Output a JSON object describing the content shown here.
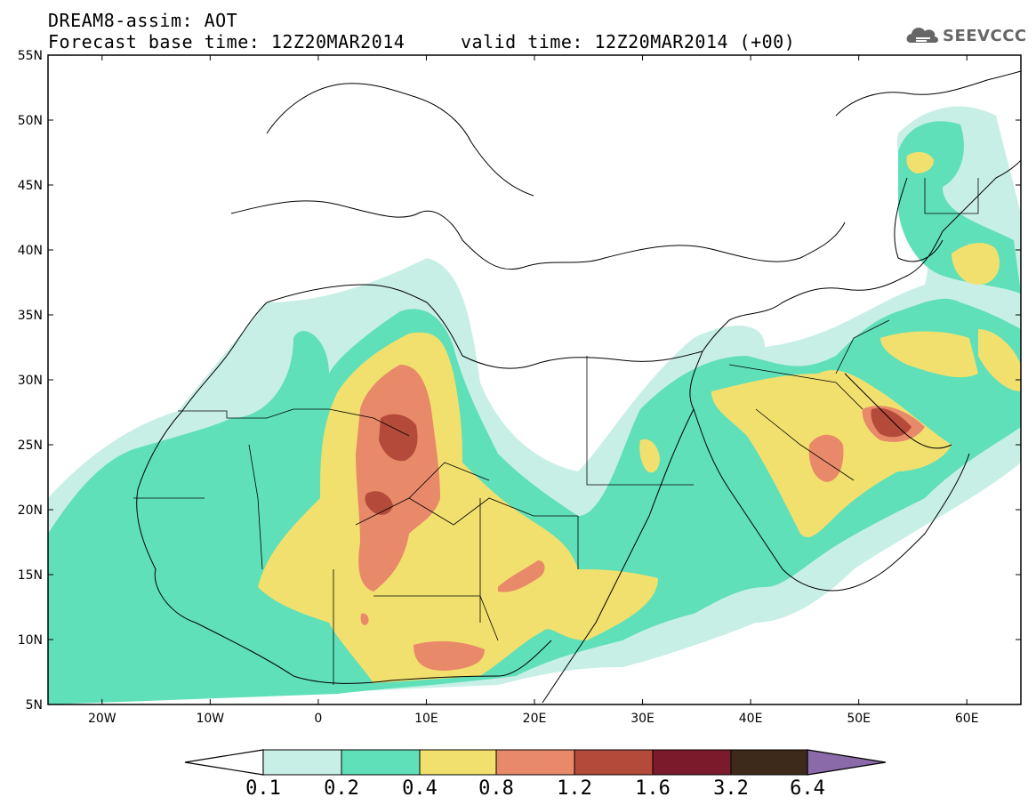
{
  "header": {
    "title": "DREAM8-assim: AOT",
    "subtitle": "Forecast base time: 12Z20MAR2014     valid time: 12Z20MAR2014 (+00)"
  },
  "logo": {
    "text": "SEEVCCC",
    "icon": "cloud-icon"
  },
  "map": {
    "lat_ticks": [
      "55N",
      "50N",
      "45N",
      "40N",
      "35N",
      "30N",
      "25N",
      "20N",
      "15N",
      "10N",
      "5N"
    ],
    "lon_ticks": [
      "20W",
      "10W",
      "0",
      "10E",
      "20E",
      "30E",
      "40E",
      "50E",
      "60E"
    ],
    "lon_range": [
      "25W",
      "65E"
    ],
    "lat_range": [
      "5N",
      "55N"
    ]
  },
  "colorbar": {
    "labels": [
      "0.1",
      "0.2",
      "0.4",
      "0.8",
      "1.2",
      "1.6",
      "3.2",
      "6.4"
    ],
    "colors": [
      "#ffffff",
      "#c8efe6",
      "#5fe0b8",
      "#f2e06e",
      "#e8896a",
      "#b44a3a",
      "#7a1a2a",
      "#3d2a1a",
      "#8a6aa8"
    ]
  },
  "levels": {
    "l1": "#c8efe6",
    "l2": "#5fe0b8",
    "l3": "#f2e06e",
    "l4": "#e8896a",
    "l5": "#b44a3a"
  }
}
